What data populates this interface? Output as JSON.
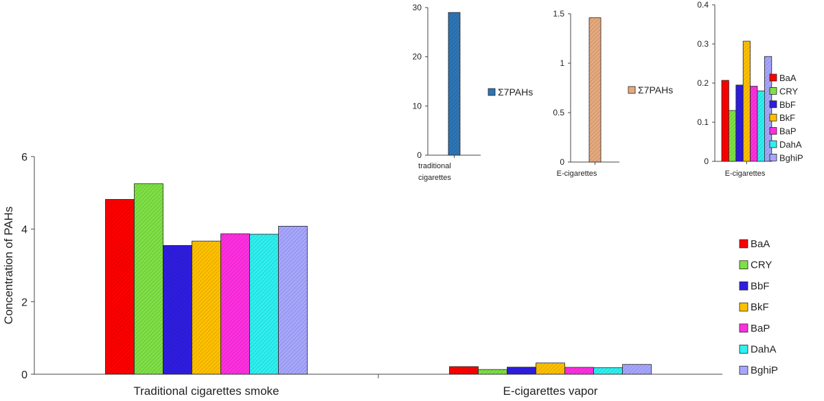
{
  "chart_data": [
    {
      "type": "bar",
      "id": "main",
      "categories": [
        "Traditional cigarettes smoke",
        "E-cigarettes vapor"
      ],
      "ylabel": "Concentration of PAHs",
      "ylim": [
        0,
        6
      ],
      "yticks": [
        0,
        2,
        4,
        6
      ],
      "legend_position": "right",
      "series": [
        {
          "name": "BaA",
          "color": "#ff0000",
          "values": [
            4.82,
            0.21
          ]
        },
        {
          "name": "CRY",
          "color": "#7ee045",
          "values": [
            5.25,
            0.13
          ]
        },
        {
          "name": "BbF",
          "color": "#2f1de0",
          "values": [
            3.55,
            0.195
          ]
        },
        {
          "name": "BkF",
          "color": "#ffc000",
          "values": [
            3.67,
            0.31
          ]
        },
        {
          "name": "BaP",
          "color": "#ff2fe0",
          "values": [
            3.87,
            0.19
          ]
        },
        {
          "name": "DahA",
          "color": "#2ef0f0",
          "values": [
            3.86,
            0.18
          ]
        },
        {
          "name": "BghiP",
          "color": "#a6a6ff",
          "values": [
            4.08,
            0.27
          ]
        }
      ]
    },
    {
      "type": "bar",
      "id": "inset-traditional",
      "categories": [
        "traditional cigarettes"
      ],
      "ylim": [
        0,
        30
      ],
      "yticks": [
        "0",
        "10",
        "20",
        "30"
      ],
      "series": [
        {
          "name": "Σ7PAHs",
          "color": "#2e75b6",
          "values": [
            29
          ]
        }
      ]
    },
    {
      "type": "bar",
      "id": "inset-ecig-sum",
      "categories": [
        "E-cigarettes"
      ],
      "ylim": [
        0,
        1.5
      ],
      "yticks": [
        "0",
        "0.5",
        "1",
        "1.5"
      ],
      "series": [
        {
          "name": "Σ7PAHs",
          "color": "#e6a97e",
          "values": [
            1.46
          ]
        }
      ]
    },
    {
      "type": "bar",
      "id": "inset-ecig-each",
      "categories": [
        "E-cigarettes"
      ],
      "ylim": [
        0,
        0.4
      ],
      "yticks": [
        "0",
        "0.1",
        "0.2",
        "0.3",
        "0.4"
      ],
      "legend_position": "right",
      "series": [
        {
          "name": "BaA",
          "color": "#ff0000",
          "values": [
            0.207
          ]
        },
        {
          "name": "CRY",
          "color": "#7ee045",
          "values": [
            0.13
          ]
        },
        {
          "name": "BbF",
          "color": "#2f1de0",
          "values": [
            0.195
          ]
        },
        {
          "name": "BkF",
          "color": "#ffc000",
          "values": [
            0.307
          ]
        },
        {
          "name": "BaP",
          "color": "#ff2fe0",
          "values": [
            0.192
          ]
        },
        {
          "name": "DahA",
          "color": "#2ef0f0",
          "values": [
            0.18
          ]
        },
        {
          "name": "BghiP",
          "color": "#a6a6ff",
          "values": [
            0.268
          ]
        }
      ]
    }
  ]
}
